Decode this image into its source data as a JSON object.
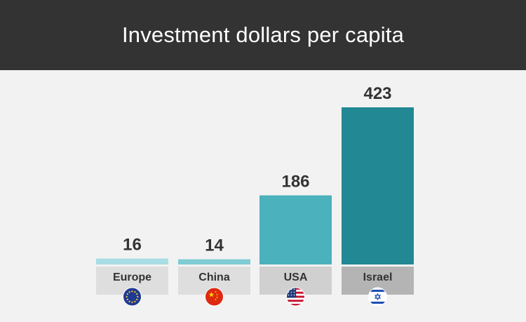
{
  "header": {
    "title": "Investment dollars per capita"
  },
  "chart_data": {
    "type": "bar",
    "title": "Investment dollars per capita",
    "xlabel": "",
    "ylabel": "",
    "ylim": [
      0,
      423
    ],
    "grid": false,
    "legend": "none",
    "categories": [
      "Europe",
      "China",
      "USA",
      "Israel"
    ],
    "values": [
      16,
      14,
      186,
      423
    ],
    "bar_colors": [
      "#a8dde4",
      "#7fccd4",
      "#4ab1bd",
      "#228893"
    ],
    "label_bg_colors": [
      "#dedede",
      "#dedede",
      "#d0d0d0",
      "#b4b4b4"
    ],
    "flag_icons": [
      "eu-flag-icon",
      "china-flag-icon",
      "usa-flag-icon",
      "israel-flag-icon"
    ]
  }
}
